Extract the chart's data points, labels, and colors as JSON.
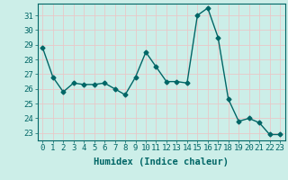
{
  "x": [
    0,
    1,
    2,
    3,
    4,
    5,
    6,
    7,
    8,
    9,
    10,
    11,
    12,
    13,
    14,
    15,
    16,
    17,
    18,
    19,
    20,
    21,
    22,
    23
  ],
  "y": [
    28.8,
    26.8,
    25.8,
    26.4,
    26.3,
    26.3,
    26.4,
    26.0,
    25.6,
    26.8,
    28.5,
    27.5,
    26.5,
    26.5,
    26.4,
    31.0,
    31.5,
    29.5,
    25.3,
    23.8,
    24.0,
    23.7,
    22.9,
    22.9
  ],
  "line_color": "#006666",
  "marker": "D",
  "marker_size": 2.5,
  "bg_color": "#cceee8",
  "grid_color": "#e8c8c8",
  "xlabel": "Humidex (Indice chaleur)",
  "xlabel_fontsize": 7.5,
  "ylabel_ticks": [
    23,
    24,
    25,
    26,
    27,
    28,
    29,
    30,
    31
  ],
  "xticks": [
    0,
    1,
    2,
    3,
    4,
    5,
    6,
    7,
    8,
    9,
    10,
    11,
    12,
    13,
    14,
    15,
    16,
    17,
    18,
    19,
    20,
    21,
    22,
    23
  ],
  "xlim": [
    -0.5,
    23.5
  ],
  "ylim": [
    22.5,
    31.8
  ],
  "tick_fontsize": 6.5,
  "linewidth": 1.0
}
